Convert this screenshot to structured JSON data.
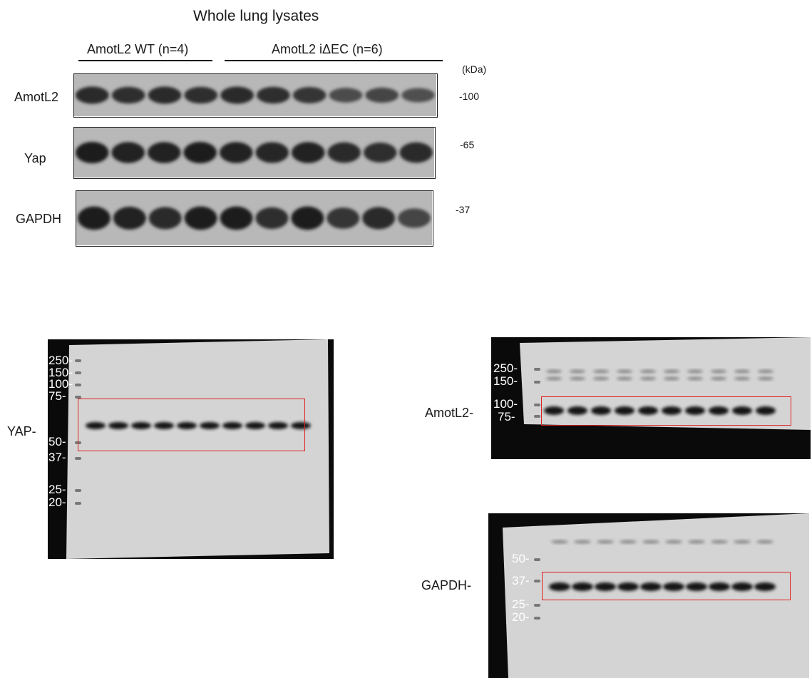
{
  "figure": {
    "title": "Whole lung lysates",
    "groups": [
      {
        "label": "AmotL2 WT (n=4)",
        "lanes": 4
      },
      {
        "label": "AmotL2 iΔEC (n=6)",
        "lanes": 6
      }
    ],
    "kda_unit": "(kDa)",
    "strips": [
      {
        "label": "AmotL2",
        "marker": "-100",
        "band_intensity": [
          0.85,
          0.8,
          0.85,
          0.8,
          0.85,
          0.8,
          0.75,
          0.55,
          0.6,
          0.5
        ]
      },
      {
        "label": "Yap",
        "marker": "-65",
        "band_intensity": [
          0.95,
          0.9,
          0.9,
          0.95,
          0.9,
          0.88,
          0.9,
          0.85,
          0.8,
          0.85
        ]
      },
      {
        "label": "GAPDH",
        "marker": "-37",
        "band_intensity": [
          0.95,
          0.9,
          0.85,
          0.95,
          0.95,
          0.8,
          0.95,
          0.75,
          0.85,
          0.6
        ]
      }
    ]
  },
  "full_blots": {
    "yap": {
      "side_label": "YAP-",
      "ladder": [
        "250-",
        "150-",
        "100-",
        "75-",
        "50-",
        "37-",
        "25-",
        "20-"
      ]
    },
    "amotl2": {
      "side_label": "AmotL2-",
      "ladder": [
        "250-",
        "150-",
        "100-",
        "75-"
      ]
    },
    "gapdh": {
      "side_label": "GAPDH-",
      "ladder": [
        "50-",
        "37-",
        "25-",
        "20-"
      ]
    }
  },
  "colors": {
    "highlight_box": "#e02020",
    "blot_background": "#b8b8b8",
    "scan_background": "#0a0a0a"
  }
}
